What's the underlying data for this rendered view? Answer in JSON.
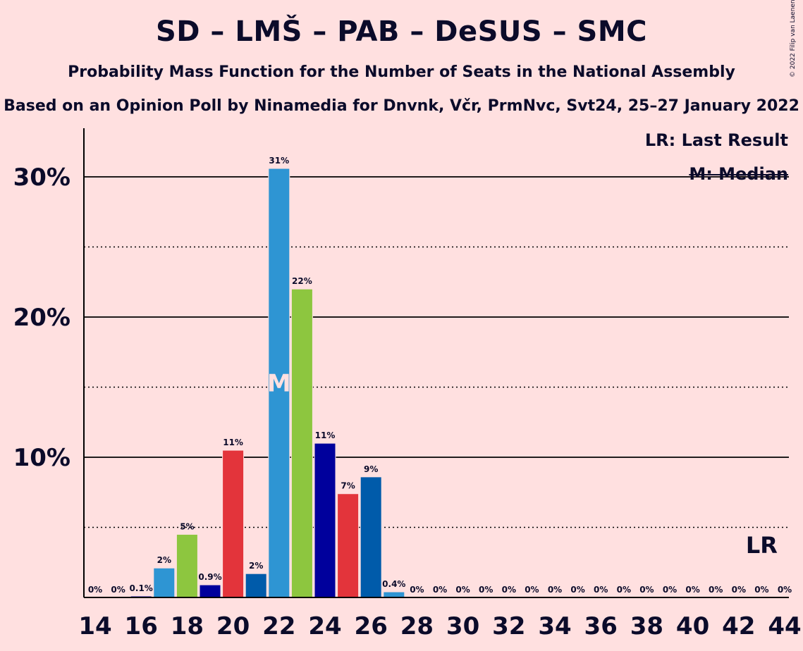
{
  "title": "SD – LMŠ – PAB – DeSUS – SMC",
  "subtitle": "Probability Mass Function for the Number of Seats in the National Assembly",
  "subtitle2": "Based on an Opinion Poll by Ninamedia for Dnvnk, Včr, PrmNvc, Svt24, 25–27 January 2022",
  "copyright": "© 2022 Filip van Laenen",
  "legend": {
    "last_result": "LR: Last Result",
    "median": "M: Median"
  },
  "chart_data": {
    "type": "bar",
    "ylim": [
      0,
      33
    ],
    "y_ticks": [
      {
        "value": 10,
        "label": "10%"
      },
      {
        "value": 20,
        "label": "20%"
      },
      {
        "value": 30,
        "label": "30%"
      }
    ],
    "y_minor_ticks": [
      5,
      15,
      25
    ],
    "x_tick_labels": [
      "14",
      "16",
      "18",
      "20",
      "22",
      "24",
      "26",
      "28",
      "30",
      "32",
      "34",
      "36",
      "38",
      "40",
      "42",
      "44"
    ],
    "median_seat": 22,
    "median_marker": "M",
    "last_result_seat": 43,
    "last_result_marker": "LR",
    "bars": [
      {
        "seats": 14,
        "value": 0,
        "label": "0%",
        "color": "#2E95D3"
      },
      {
        "seats": 15,
        "value": 0,
        "label": "0%",
        "color": "#8DC63F"
      },
      {
        "seats": 16,
        "value": 0.1,
        "label": "0.1%",
        "color": "#00009C"
      },
      {
        "seats": 17,
        "value": 2.1,
        "label": "2%",
        "color": "#2E95D3"
      },
      {
        "seats": 18,
        "value": 4.5,
        "label": "5%",
        "color": "#8DC63F"
      },
      {
        "seats": 19,
        "value": 0.9,
        "label": "0.9%",
        "color": "#00009C"
      },
      {
        "seats": 20,
        "value": 10.5,
        "label": "11%",
        "color": "#E3343B"
      },
      {
        "seats": 21,
        "value": 1.7,
        "label": "2%",
        "color": "#005BAA"
      },
      {
        "seats": 22,
        "value": 30.6,
        "label": "31%",
        "color": "#2E95D3"
      },
      {
        "seats": 23,
        "value": 22.0,
        "label": "22%",
        "color": "#8DC63F"
      },
      {
        "seats": 24,
        "value": 11.0,
        "label": "11%",
        "color": "#00009C"
      },
      {
        "seats": 25,
        "value": 7.4,
        "label": "7%",
        "color": "#E3343B"
      },
      {
        "seats": 26,
        "value": 8.6,
        "label": "9%",
        "color": "#005BAA"
      },
      {
        "seats": 27,
        "value": 0.4,
        "label": "0.4%",
        "color": "#2E95D3"
      },
      {
        "seats": 28,
        "value": 0,
        "label": "0%",
        "color": "#8DC63F"
      },
      {
        "seats": 29,
        "value": 0,
        "label": "0%",
        "color": "#00009C"
      },
      {
        "seats": 30,
        "value": 0,
        "label": "0%",
        "color": "#E3343B"
      },
      {
        "seats": 31,
        "value": 0,
        "label": "0%",
        "color": "#005BAA"
      },
      {
        "seats": 32,
        "value": 0,
        "label": "0%",
        "color": "#2E95D3"
      },
      {
        "seats": 33,
        "value": 0,
        "label": "0%",
        "color": "#8DC63F"
      },
      {
        "seats": 34,
        "value": 0,
        "label": "0%",
        "color": "#00009C"
      },
      {
        "seats": 35,
        "value": 0,
        "label": "0%",
        "color": "#E3343B"
      },
      {
        "seats": 36,
        "value": 0,
        "label": "0%",
        "color": "#005BAA"
      },
      {
        "seats": 37,
        "value": 0,
        "label": "0%",
        "color": "#2E95D3"
      },
      {
        "seats": 38,
        "value": 0,
        "label": "0%",
        "color": "#8DC63F"
      },
      {
        "seats": 39,
        "value": 0,
        "label": "0%",
        "color": "#00009C"
      },
      {
        "seats": 40,
        "value": 0,
        "label": "0%",
        "color": "#E3343B"
      },
      {
        "seats": 41,
        "value": 0,
        "label": "0%",
        "color": "#005BAA"
      },
      {
        "seats": 42,
        "value": 0,
        "label": "0%",
        "color": "#2E95D3"
      },
      {
        "seats": 43,
        "value": 0,
        "label": "0%",
        "color": "#8DC63F"
      },
      {
        "seats": 44,
        "value": 0,
        "label": "0%",
        "color": "#00009C"
      }
    ]
  }
}
